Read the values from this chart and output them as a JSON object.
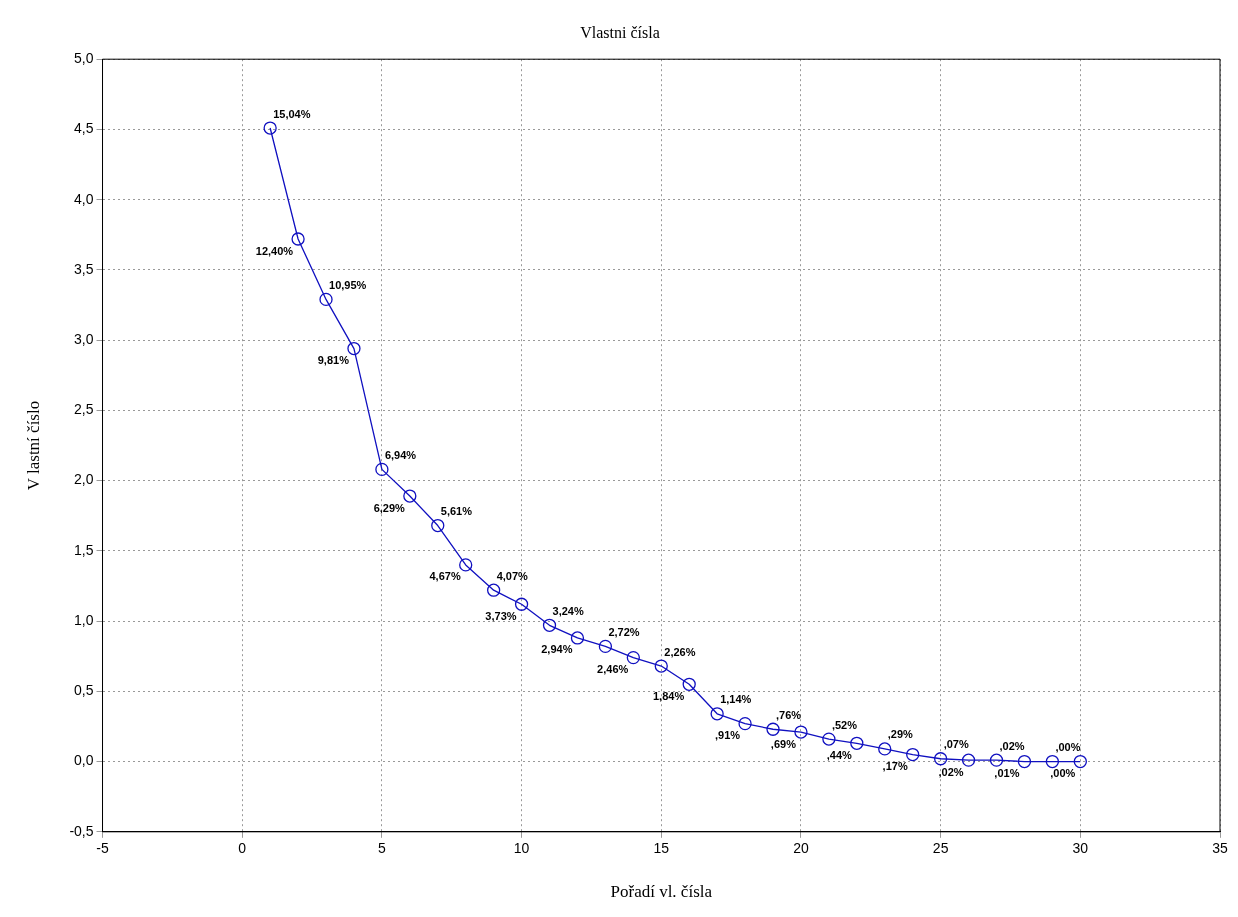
{
  "chart_data": {
    "type": "line",
    "title": "Vlastni čísla",
    "xlabel": "Pořadí vl. čísla",
    "ylabel": "V lastní číslo",
    "x": [
      1,
      2,
      3,
      4,
      5,
      6,
      7,
      8,
      9,
      10,
      11,
      12,
      13,
      14,
      15,
      16,
      17,
      18,
      19,
      20,
      21,
      22,
      23,
      24,
      25,
      26,
      27,
      28,
      29,
      30
    ],
    "series": [
      {
        "color": "#1010c0",
        "values": [
          4.51,
          3.72,
          3.29,
          2.94,
          2.08,
          1.89,
          1.68,
          1.4,
          1.22,
          1.12,
          0.97,
          0.88,
          0.82,
          0.74,
          0.68,
          0.55,
          0.34,
          0.27,
          0.23,
          0.21,
          0.16,
          0.13,
          0.09,
          0.05,
          0.02,
          0.01,
          0.01,
          0.0,
          0.0,
          0.0
        ]
      }
    ],
    "annotations": [
      {
        "text": "15,04%",
        "x": 1,
        "y": 4.51
      },
      {
        "text": "12,40%",
        "x": 2,
        "y": 3.72
      },
      {
        "text": "10,95%",
        "x": 3,
        "y": 3.29
      },
      {
        "text": "9,81%",
        "x": 4,
        "y": 2.94
      },
      {
        "text": "6,94%",
        "x": 5,
        "y": 2.08
      },
      {
        "text": "6,29%",
        "x": 6,
        "y": 1.89
      },
      {
        "text": "5,61%",
        "x": 7,
        "y": 1.68
      },
      {
        "text": "4,67%",
        "x": 8,
        "y": 1.4
      },
      {
        "text": "4,07%",
        "x": 9,
        "y": 1.22
      },
      {
        "text": "3,73%",
        "x": 10,
        "y": 1.12
      },
      {
        "text": "3,24%",
        "x": 11,
        "y": 0.97
      },
      {
        "text": "2,94%",
        "x": 12,
        "y": 0.88
      },
      {
        "text": "2,72%",
        "x": 13,
        "y": 0.82
      },
      {
        "text": "2,46%",
        "x": 14,
        "y": 0.74
      },
      {
        "text": "2,26%",
        "x": 15,
        "y": 0.68
      },
      {
        "text": "1,84%",
        "x": 16,
        "y": 0.55
      },
      {
        "text": "1,14%",
        "x": 17,
        "y": 0.34
      },
      {
        "text": ",91%",
        "x": 18,
        "y": 0.27
      },
      {
        "text": ",76%",
        "x": 19,
        "y": 0.23
      },
      {
        "text": ",69%",
        "x": 20,
        "y": 0.21
      },
      {
        "text": ",52%",
        "x": 21,
        "y": 0.16
      },
      {
        "text": ",44%",
        "x": 22,
        "y": 0.13
      },
      {
        "text": ",29%",
        "x": 23,
        "y": 0.09
      },
      {
        "text": ",17%",
        "x": 24,
        "y": 0.05
      },
      {
        "text": ",07%",
        "x": 25,
        "y": 0.02
      },
      {
        "text": ",02%",
        "x": 26,
        "y": 0.01
      },
      {
        "text": ",02%",
        "x": 27,
        "y": 0.01
      },
      {
        "text": ",01%",
        "x": 28,
        "y": 0.0
      },
      {
        "text": ",00%",
        "x": 29,
        "y": 0.0
      },
      {
        "text": ",00%",
        "x": 30,
        "y": 0.0
      }
    ],
    "xlim": [
      -5,
      35
    ],
    "xticks": [
      -5,
      0,
      5,
      10,
      15,
      20,
      25,
      30,
      35
    ],
    "ylim": [
      -0.5,
      5
    ],
    "yticks": [
      {
        "value": -0.5,
        "label": "-0,5"
      },
      {
        "value": 0,
        "label": "0,0"
      },
      {
        "value": 0.5,
        "label": "0,5"
      },
      {
        "value": 1,
        "label": "1,0"
      },
      {
        "value": 1.5,
        "label": "1,5"
      },
      {
        "value": 2,
        "label": "2,0"
      },
      {
        "value": 2.5,
        "label": "2,5"
      },
      {
        "value": 3,
        "label": "3,0"
      },
      {
        "value": 3.5,
        "label": "3,5"
      },
      {
        "value": 4,
        "label": "4,0"
      },
      {
        "value": 4.5,
        "label": "4,5"
      },
      {
        "value": 5,
        "label": "5,0"
      }
    ],
    "grid": true,
    "legend": false,
    "marker": "circle",
    "line_style": "solid"
  }
}
